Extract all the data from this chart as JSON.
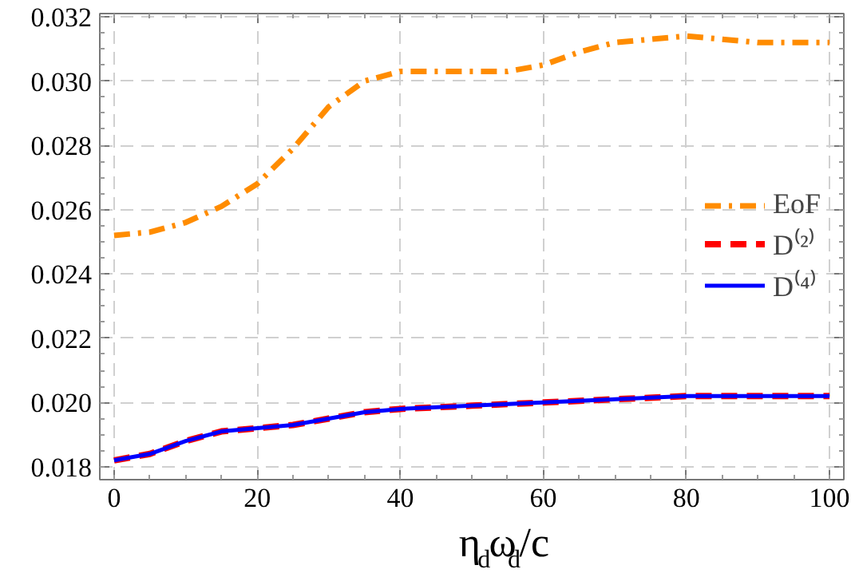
{
  "chart_data": {
    "type": "line",
    "xlabel": "η$_{d}$ω$_{d}$/c",
    "xlim": [
      -2,
      102
    ],
    "xticks": [
      0,
      20,
      40,
      60,
      80,
      100
    ],
    "ylim": [
      0.0176,
      0.0321
    ],
    "yticks": [
      {
        "value": 0.018,
        "label": "0.018"
      },
      {
        "value": 0.02,
        "label": "0.020"
      },
      {
        "value": 0.022,
        "label": "0.022"
      },
      {
        "value": 0.024,
        "label": "0.024"
      },
      {
        "value": 0.026,
        "label": "0.026"
      },
      {
        "value": 0.028,
        "label": "0.028"
      },
      {
        "value": 0.03,
        "label": "0.030"
      },
      {
        "value": 0.032,
        "label": "0.032"
      }
    ],
    "grid": true,
    "legend": "right",
    "series": [
      {
        "name": "EoF",
        "color": "#ff8c00",
        "line_style": "dashdot",
        "x": [
          0,
          5,
          10,
          15,
          20,
          25,
          30,
          35,
          40,
          45,
          50,
          55,
          60,
          65,
          70,
          75,
          80,
          85,
          90,
          95,
          100
        ],
        "values": [
          0.0252,
          0.0253,
          0.0256,
          0.0261,
          0.0268,
          0.0279,
          0.0292,
          0.03,
          0.0303,
          0.0303,
          0.0303,
          0.0303,
          0.0305,
          0.0309,
          0.0312,
          0.0313,
          0.0314,
          0.0313,
          0.0312,
          0.0312,
          0.0312
        ]
      },
      {
        "name": "D⁽²⁾",
        "color": "#ff0000",
        "line_style": "dashed",
        "x": [
          0,
          5,
          10,
          15,
          20,
          25,
          30,
          35,
          40,
          50,
          60,
          70,
          80,
          90,
          100
        ],
        "values": [
          0.0182,
          0.0184,
          0.0188,
          0.0191,
          0.0192,
          0.0193,
          0.0195,
          0.0197,
          0.0198,
          0.0199,
          0.02,
          0.0201,
          0.0202,
          0.0202,
          0.0202
        ]
      },
      {
        "name": "D⁽⁴⁾",
        "color": "#0000ff",
        "line_style": "solid",
        "x": [
          0,
          5,
          10,
          15,
          20,
          25,
          30,
          35,
          40,
          50,
          60,
          70,
          80,
          90,
          100
        ],
        "values": [
          0.0182,
          0.0184,
          0.0188,
          0.0191,
          0.0192,
          0.0193,
          0.0195,
          0.0197,
          0.0198,
          0.0199,
          0.02,
          0.0201,
          0.0202,
          0.0202,
          0.0202
        ]
      }
    ]
  }
}
